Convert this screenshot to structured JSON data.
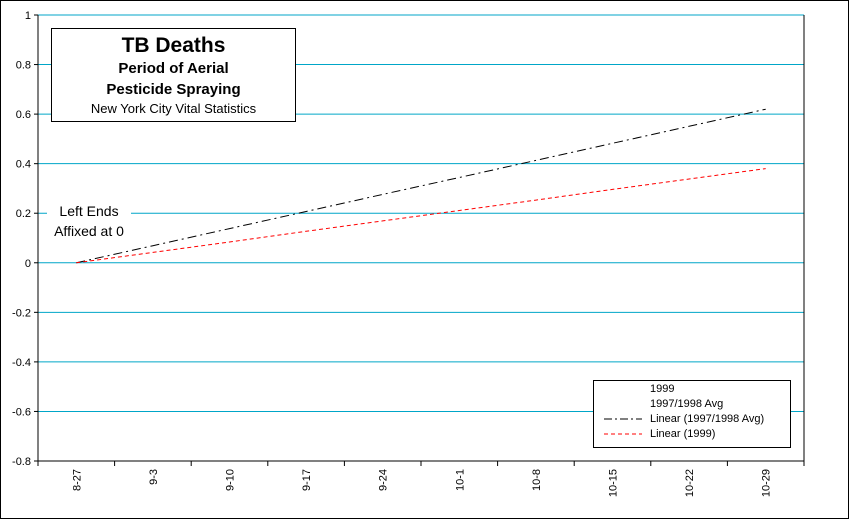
{
  "title": {
    "main": "TB Deaths",
    "sub1": "Period of Aerial",
    "sub2": "Pesticide Spraying",
    "source": "New York City Vital Statistics"
  },
  "annotation": {
    "line1": "Left Ends",
    "line2": "Affixed at 0"
  },
  "legend": {
    "items": [
      {
        "label": "1999"
      },
      {
        "label": "1997/1998 Avg"
      },
      {
        "label": "Linear (1997/1998 Avg)"
      },
      {
        "label": "Linear (1999)"
      }
    ]
  },
  "colors": {
    "grid": "#00a6c8",
    "avg_trend": "#000000",
    "y1999_trend": "#ff0000"
  },
  "chart_data": {
    "type": "line",
    "categories": [
      "8-27",
      "9-3",
      "9-10",
      "9-17",
      "9-24",
      "10-1",
      "10-8",
      "10-15",
      "10-22",
      "10-29"
    ],
    "yticks": [
      "1",
      "0.8",
      "0.6",
      "0.4",
      "0.2",
      "0",
      "-0.2",
      "-0.4",
      "-0.6",
      "-0.8"
    ],
    "ylim": [
      -0.8,
      1
    ],
    "grid": true,
    "legend_position": "bottom-right",
    "series": [
      {
        "name": "Linear (1997/1998 Avg)",
        "style": "dash-dot",
        "values": [
          0,
          0.069,
          0.138,
          0.207,
          0.276,
          0.344,
          0.413,
          0.482,
          0.551,
          0.62
        ]
      },
      {
        "name": "Linear (1999)",
        "style": "dashed",
        "values": [
          0,
          0.042,
          0.084,
          0.127,
          0.169,
          0.211,
          0.253,
          0.296,
          0.338,
          0.38
        ]
      }
    ]
  }
}
